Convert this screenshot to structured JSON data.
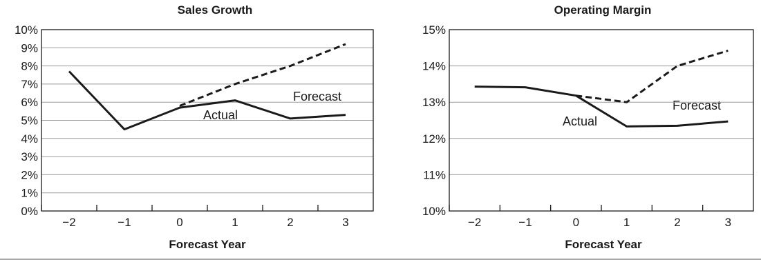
{
  "chart_data": [
    {
      "type": "line",
      "title": "Sales Growth",
      "xlabel": "Forecast Year",
      "ylabel": "",
      "ylim": [
        0,
        10
      ],
      "y_ticks": [
        0,
        1,
        2,
        3,
        4,
        5,
        6,
        7,
        8,
        9,
        10
      ],
      "y_tick_labels": [
        "0%",
        "1%",
        "2%",
        "3%",
        "4%",
        "5%",
        "6%",
        "7%",
        "8%",
        "9%",
        "10%"
      ],
      "x_ticks": [
        -2,
        -1,
        0,
        1,
        2,
        3
      ],
      "x_tick_labels": [
        "−2",
        "−1",
        "0",
        "1",
        "2",
        "3"
      ],
      "grid": true,
      "series": [
        {
          "name": "Actual",
          "style": "solid",
          "x": [
            -2,
            -1,
            0,
            1,
            2,
            3
          ],
          "values": [
            7.7,
            4.5,
            5.7,
            6.1,
            5.1,
            5.3
          ]
        },
        {
          "name": "Forecast",
          "style": "dashed",
          "x": [
            0,
            1,
            2,
            3
          ],
          "values": [
            5.8,
            7.0,
            8.0,
            9.2
          ]
        }
      ]
    },
    {
      "type": "line",
      "title": "Operating Margin",
      "xlabel": "Forecast Year",
      "ylabel": "",
      "ylim": [
        10,
        15
      ],
      "y_ticks": [
        10,
        11,
        12,
        13,
        14,
        15
      ],
      "y_tick_labels": [
        "10%",
        "11%",
        "12%",
        "13%",
        "14%",
        "15%"
      ],
      "x_ticks": [
        -2,
        -1,
        0,
        1,
        2,
        3
      ],
      "x_tick_labels": [
        "−2",
        "−1",
        "0",
        "1",
        "2",
        "3"
      ],
      "grid": true,
      "series": [
        {
          "name": "Actual",
          "style": "solid",
          "x": [
            -2,
            -1,
            0,
            1,
            2,
            3
          ],
          "values": [
            13.43,
            13.41,
            13.18,
            12.33,
            12.35,
            12.47
          ]
        },
        {
          "name": "Forecast",
          "style": "dashed",
          "x": [
            0,
            1,
            2,
            3
          ],
          "values": [
            13.18,
            13.0,
            14.0,
            14.42
          ]
        }
      ]
    }
  ]
}
